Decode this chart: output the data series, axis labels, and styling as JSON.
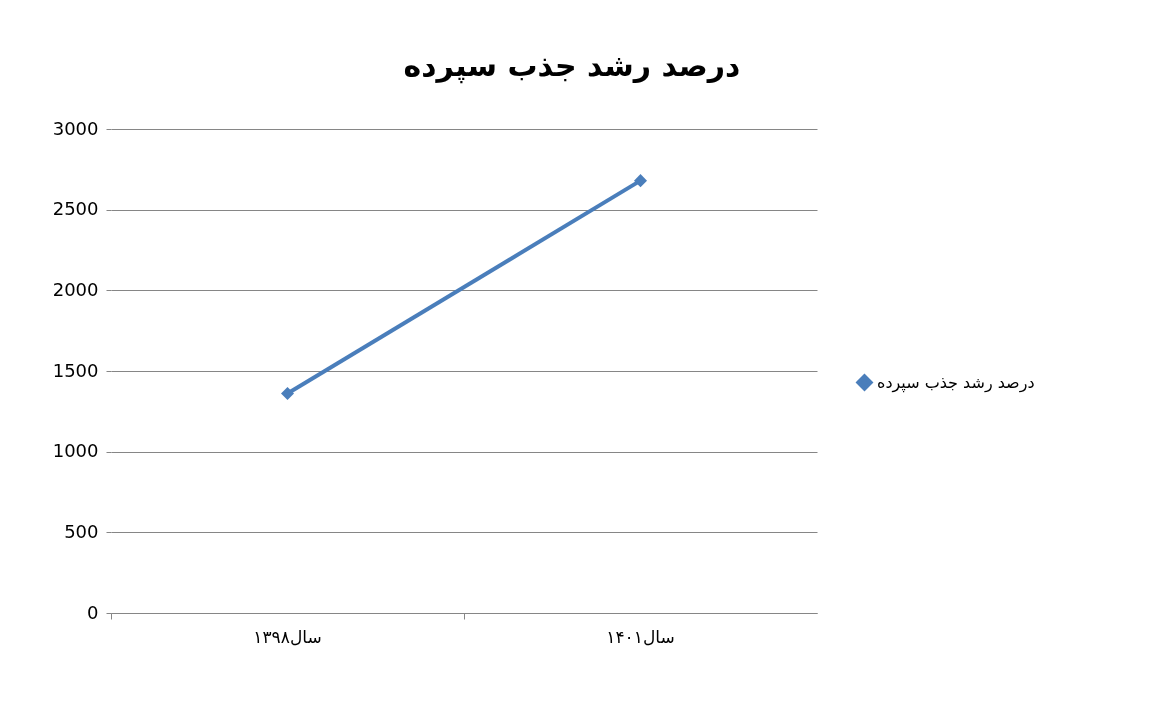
{
  "chart_data": {
    "type": "line",
    "title": "درصد رشد جذب سپرده",
    "categories": [
      "سال۱۳۹۸",
      "سال۱۴۰۱"
    ],
    "series": [
      {
        "name": "درصد رشد جذب سپرده",
        "color": "#4a7ebb",
        "values": [
          1360,
          2680
        ]
      }
    ],
    "ylim": [
      0,
      3000
    ],
    "yticks": [
      0,
      500,
      1000,
      1500,
      2000,
      2500,
      3000
    ],
    "grid": "y",
    "legend": "right",
    "marker": "diamond",
    "line_style": "solid"
  }
}
